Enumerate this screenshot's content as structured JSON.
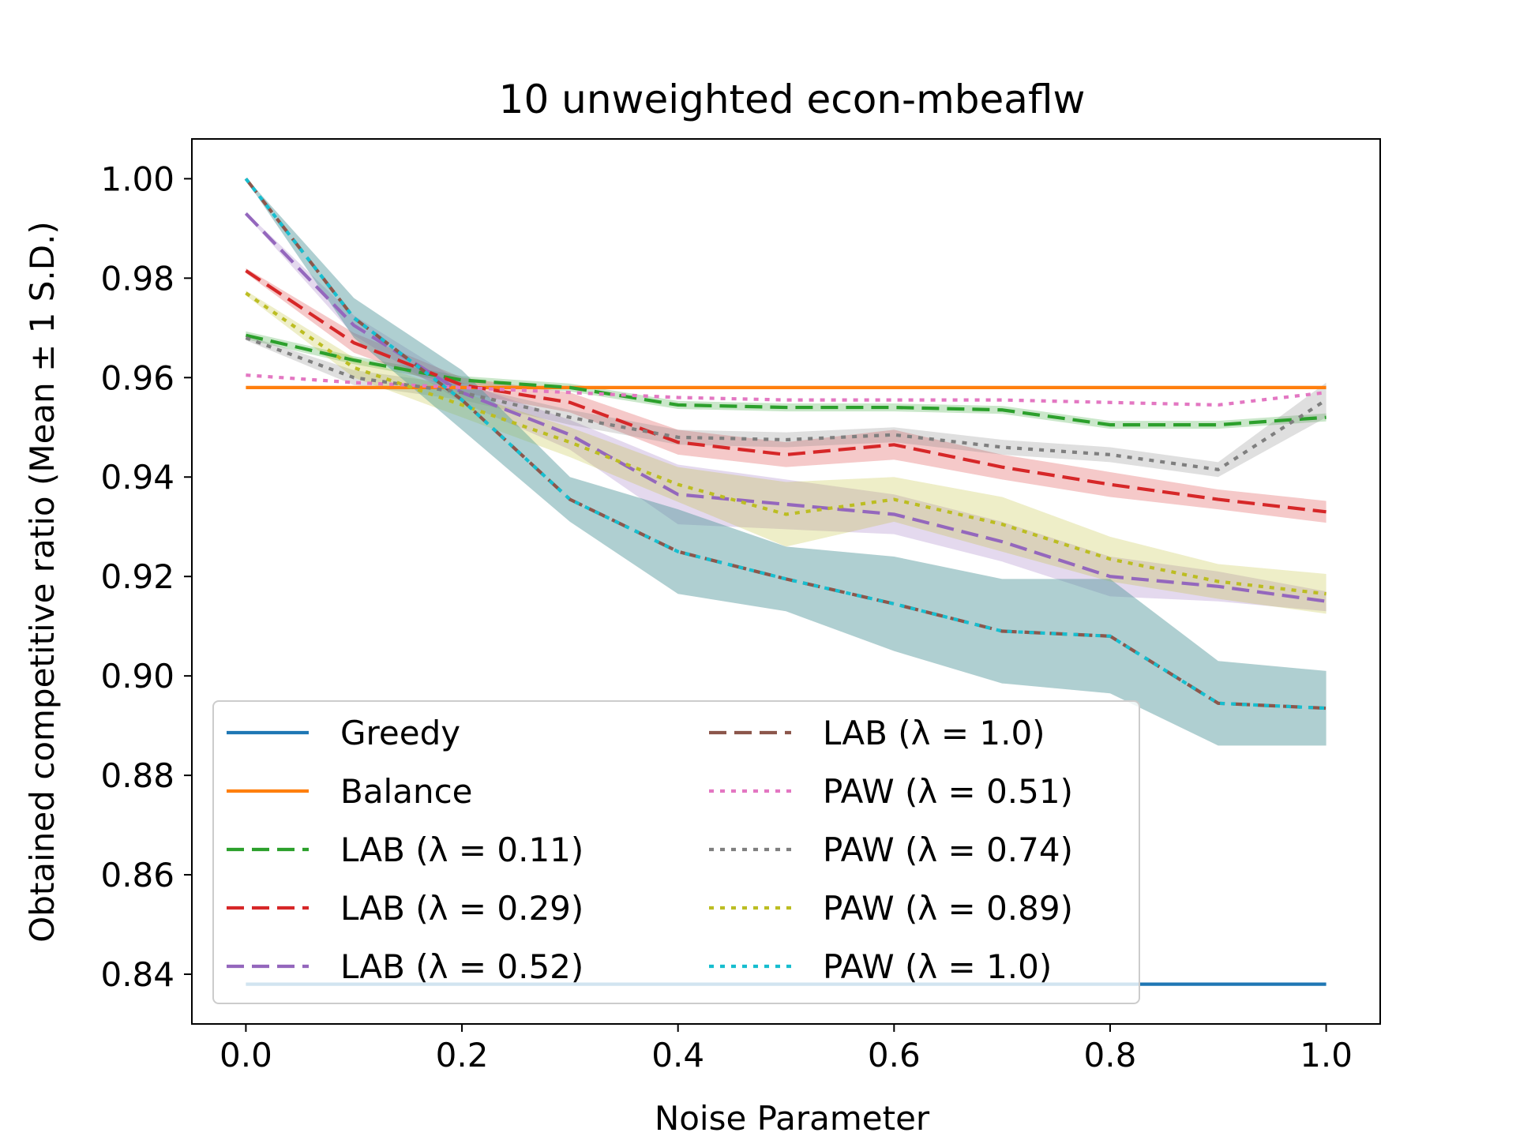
{
  "chart_data": {
    "type": "line",
    "title": "10 unweighted econ-mbeaflw",
    "xlabel": "Noise Parameter",
    "ylabel": "Obtained competitive ratio (Mean ± 1 S.D.)",
    "xlim": [
      -0.05,
      1.05
    ],
    "ylim": [
      0.83,
      1.008
    ],
    "xticks": [
      0.0,
      0.2,
      0.4,
      0.6,
      0.8,
      1.0
    ],
    "xtick_labels": [
      "0.0",
      "0.2",
      "0.4",
      "0.6",
      "0.8",
      "1.0"
    ],
    "yticks": [
      0.84,
      0.86,
      0.88,
      0.9,
      0.92,
      0.94,
      0.96,
      0.98,
      1.0
    ],
    "ytick_labels": [
      "0.84",
      "0.86",
      "0.88",
      "0.90",
      "0.92",
      "0.94",
      "0.96",
      "0.98",
      "1.00"
    ],
    "grid": false,
    "legend_position": "lower-left",
    "x": [
      0.0,
      0.1,
      0.2,
      0.3,
      0.4,
      0.5,
      0.6,
      0.7,
      0.8,
      0.9,
      1.0
    ],
    "series": [
      {
        "name": "Greedy",
        "color": "#1f77b4",
        "style": "solid",
        "values": [
          0.838,
          0.838,
          0.838,
          0.838,
          0.838,
          0.838,
          0.838,
          0.838,
          0.838,
          0.838,
          0.838
        ],
        "sd": [
          0,
          0,
          0,
          0,
          0,
          0,
          0,
          0,
          0,
          0,
          0
        ]
      },
      {
        "name": "Balance",
        "color": "#ff7f0e",
        "style": "solid",
        "values": [
          0.958,
          0.958,
          0.958,
          0.958,
          0.958,
          0.958,
          0.958,
          0.958,
          0.958,
          0.958,
          0.958
        ],
        "sd": [
          0,
          0,
          0,
          0,
          0,
          0,
          0,
          0,
          0,
          0,
          0
        ]
      },
      {
        "name": "LAB (λ = 0.11)",
        "color": "#2ca02c",
        "style": "dashed",
        "values": [
          0.9685,
          0.9635,
          0.9595,
          0.958,
          0.9545,
          0.954,
          0.954,
          0.9535,
          0.9505,
          0.9505,
          0.952
        ],
        "sd": [
          0.0008,
          0.0008,
          0.0008,
          0.0008,
          0.0008,
          0.0008,
          0.0008,
          0.0008,
          0.0008,
          0.0008,
          0.0008
        ]
      },
      {
        "name": "LAB (λ = 0.29)",
        "color": "#d62728",
        "style": "dashed",
        "values": [
          0.9815,
          0.967,
          0.9585,
          0.955,
          0.947,
          0.9445,
          0.9465,
          0.942,
          0.9385,
          0.9355,
          0.933
        ],
        "sd": [
          0.0005,
          0.002,
          0.0015,
          0.002,
          0.0025,
          0.0025,
          0.003,
          0.0025,
          0.0025,
          0.002,
          0.0022
        ]
      },
      {
        "name": "LAB (λ = 0.52)",
        "color": "#9467bd",
        "style": "dashed",
        "values": [
          0.993,
          0.9705,
          0.957,
          0.9485,
          0.9365,
          0.9345,
          0.9325,
          0.927,
          0.92,
          0.918,
          0.915
        ],
        "sd": [
          0.0003,
          0.002,
          0.002,
          0.003,
          0.006,
          0.005,
          0.004,
          0.004,
          0.004,
          0.003,
          0.002
        ]
      },
      {
        "name": "LAB (λ = 1.0)",
        "color": "#8c564b",
        "style": "dashed",
        "values": [
          1.0,
          0.972,
          0.9555,
          0.9355,
          0.925,
          0.9195,
          0.9145,
          0.909,
          0.908,
          0.8945,
          0.8935
        ],
        "sd": [
          0.0002,
          0.004,
          0.006,
          0.0045,
          0.0085,
          0.0065,
          0.0095,
          0.0105,
          0.0115,
          0.0085,
          0.0075
        ]
      },
      {
        "name": "PAW (λ = 0.51)",
        "color": "#e377c2",
        "style": "dotted",
        "values": [
          0.9605,
          0.959,
          0.958,
          0.957,
          0.956,
          0.9555,
          0.9555,
          0.9555,
          0.955,
          0.9545,
          0.957
        ],
        "sd": [
          0.0002,
          0.0002,
          0.0002,
          0.0002,
          0.0002,
          0.0002,
          0.0002,
          0.0002,
          0.0002,
          0.0002,
          0.0002
        ]
      },
      {
        "name": "PAW (λ = 0.74)",
        "color": "#7f7f7f",
        "style": "dotted",
        "values": [
          0.968,
          0.96,
          0.957,
          0.952,
          0.948,
          0.9475,
          0.9485,
          0.946,
          0.9445,
          0.9415,
          0.9555
        ],
        "sd": [
          0.0005,
          0.0015,
          0.0015,
          0.0015,
          0.0015,
          0.0015,
          0.0015,
          0.0015,
          0.0015,
          0.0015,
          0.0035
        ]
      },
      {
        "name": "PAW (λ = 0.89)",
        "color": "#bcbd22",
        "style": "dotted",
        "values": [
          0.977,
          0.962,
          0.9545,
          0.947,
          0.9385,
          0.9325,
          0.9355,
          0.9305,
          0.9235,
          0.919,
          0.9165
        ],
        "sd": [
          0.0005,
          0.002,
          0.0025,
          0.003,
          0.0035,
          0.0065,
          0.0045,
          0.0055,
          0.0045,
          0.0035,
          0.004
        ]
      },
      {
        "name": "PAW (λ = 1.0)",
        "color": "#17becf",
        "style": "dotted",
        "values": [
          1.0,
          0.972,
          0.9555,
          0.9355,
          0.925,
          0.9195,
          0.9145,
          0.909,
          0.908,
          0.8945,
          0.8935
        ],
        "sd": [
          0.0002,
          0.004,
          0.006,
          0.0045,
          0.0085,
          0.0065,
          0.0095,
          0.0105,
          0.0115,
          0.0085,
          0.0075
        ]
      }
    ]
  }
}
